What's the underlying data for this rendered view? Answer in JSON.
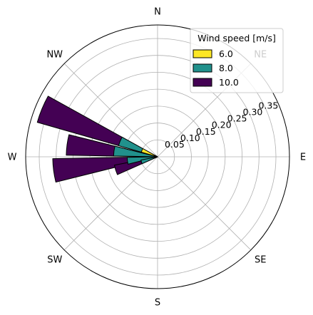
{
  "chart_data": {
    "type": "polar-bar",
    "directions": [
      "N",
      "NE",
      "E",
      "SE",
      "S",
      "SW",
      "W",
      "NW"
    ],
    "radial_ticks": [
      "0.05",
      "0.10",
      "0.15",
      "0.20",
      "0.25",
      "0.30",
      "0.35"
    ],
    "rmax": 0.39,
    "grid": true,
    "legend": {
      "title": "Wind speed [m/s]",
      "placement": "top-right"
    },
    "series": [
      {
        "name": "6.0",
        "color": "#fde725",
        "bars": [
          {
            "direction_deg": 292.5,
            "value": 0.05
          }
        ]
      },
      {
        "name": "8.0",
        "color": "#21918c",
        "bars": [
          {
            "direction_deg": 292.5,
            "value": 0.12
          },
          {
            "direction_deg": 277.5,
            "value": 0.13
          },
          {
            "direction_deg": 262.5,
            "value": 0.09
          },
          {
            "direction_deg": 252.5,
            "value": 0.05
          }
        ]
      },
      {
        "name": "10.0",
        "color": "#440154",
        "bars": [
          {
            "direction_deg": 292.5,
            "value": 0.37
          },
          {
            "direction_deg": 277.5,
            "value": 0.27
          },
          {
            "direction_deg": 262.5,
            "value": 0.31
          },
          {
            "direction_deg": 252.5,
            "value": 0.13
          }
        ]
      }
    ]
  }
}
